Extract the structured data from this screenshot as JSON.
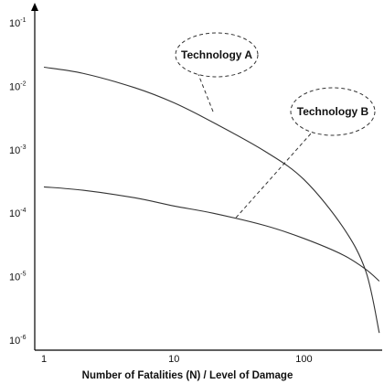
{
  "chart_data": {
    "type": "line",
    "title": "",
    "xlabel": "Number of Fatalities (N) / Level of Damage",
    "ylabel": "",
    "x_scale": "log",
    "y_scale": "log",
    "xlim": [
      0.85,
      400
    ],
    "ylim": [
      1e-06,
      0.1
    ],
    "x_ticks": [
      {
        "value": 1,
        "label": "1"
      },
      {
        "value": 10,
        "label": "10"
      },
      {
        "value": 100,
        "label": "100"
      }
    ],
    "y_ticks": [
      {
        "value": 0.1,
        "base": "10",
        "exp": "-1"
      },
      {
        "value": 0.01,
        "base": "10",
        "exp": "-2"
      },
      {
        "value": 0.001,
        "base": "10",
        "exp": "-3"
      },
      {
        "value": 0.0001,
        "base": "10",
        "exp": "-4"
      },
      {
        "value": 1e-05,
        "base": "10",
        "exp": "-5"
      },
      {
        "value": 1e-06,
        "base": "10",
        "exp": "-6"
      }
    ],
    "grid": false,
    "legend": "none",
    "series": [
      {
        "name": "Technology A",
        "x": [
          1,
          2,
          5,
          10,
          20,
          50,
          100,
          200,
          300,
          380
        ],
        "y": [
          0.02,
          0.016,
          0.0095,
          0.0055,
          0.0027,
          0.00095,
          0.00034,
          6e-05,
          1.2e-05,
          1.3e-06
        ]
      },
      {
        "name": "Technology B",
        "x": [
          1,
          2,
          5,
          10,
          20,
          50,
          100,
          200,
          300,
          380
        ],
        "y": [
          0.00026,
          0.00023,
          0.000175,
          0.00013,
          0.0001,
          6.4e-05,
          4e-05,
          2.2e-05,
          1.3e-05,
          8.5e-06
        ]
      }
    ],
    "callouts": [
      {
        "text": "Technology A",
        "series": 0,
        "point_x": 20,
        "point_y": 0.004
      },
      {
        "text": "Technology B",
        "series": 1,
        "point_x": 30,
        "point_y": 8.5e-05
      }
    ]
  }
}
